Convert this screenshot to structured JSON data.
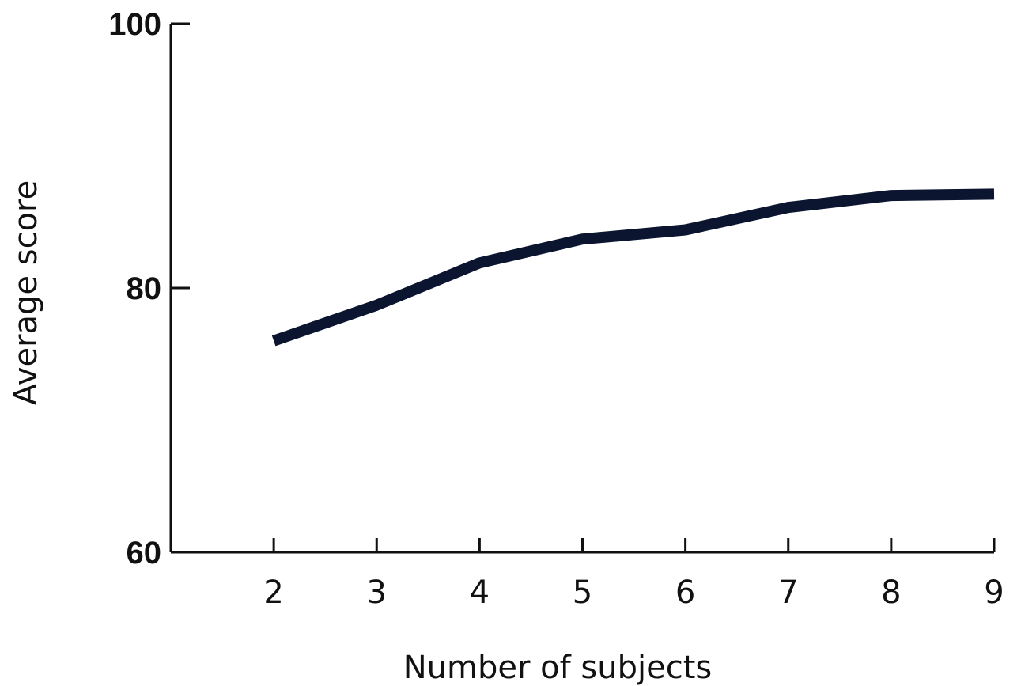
{
  "chart_data": {
    "type": "line",
    "title": "",
    "xlabel": "Number of subjects",
    "ylabel": "Average score",
    "x": [
      2,
      3,
      4,
      5,
      6,
      7,
      8,
      9
    ],
    "series": [
      {
        "values": [
          76,
          78.7,
          81.9,
          83.7,
          84.4,
          86.1,
          87,
          87.1
        ]
      }
    ],
    "xlim": [
      1,
      9
    ],
    "ylim": [
      60,
      100
    ],
    "xticks": [
      "2",
      "3",
      "4",
      "5",
      "6",
      "7",
      "8",
      "9"
    ],
    "yticks": [
      "60",
      "80",
      "100"
    ],
    "grid": false,
    "legend": "none",
    "line_color": "#0b1530"
  }
}
